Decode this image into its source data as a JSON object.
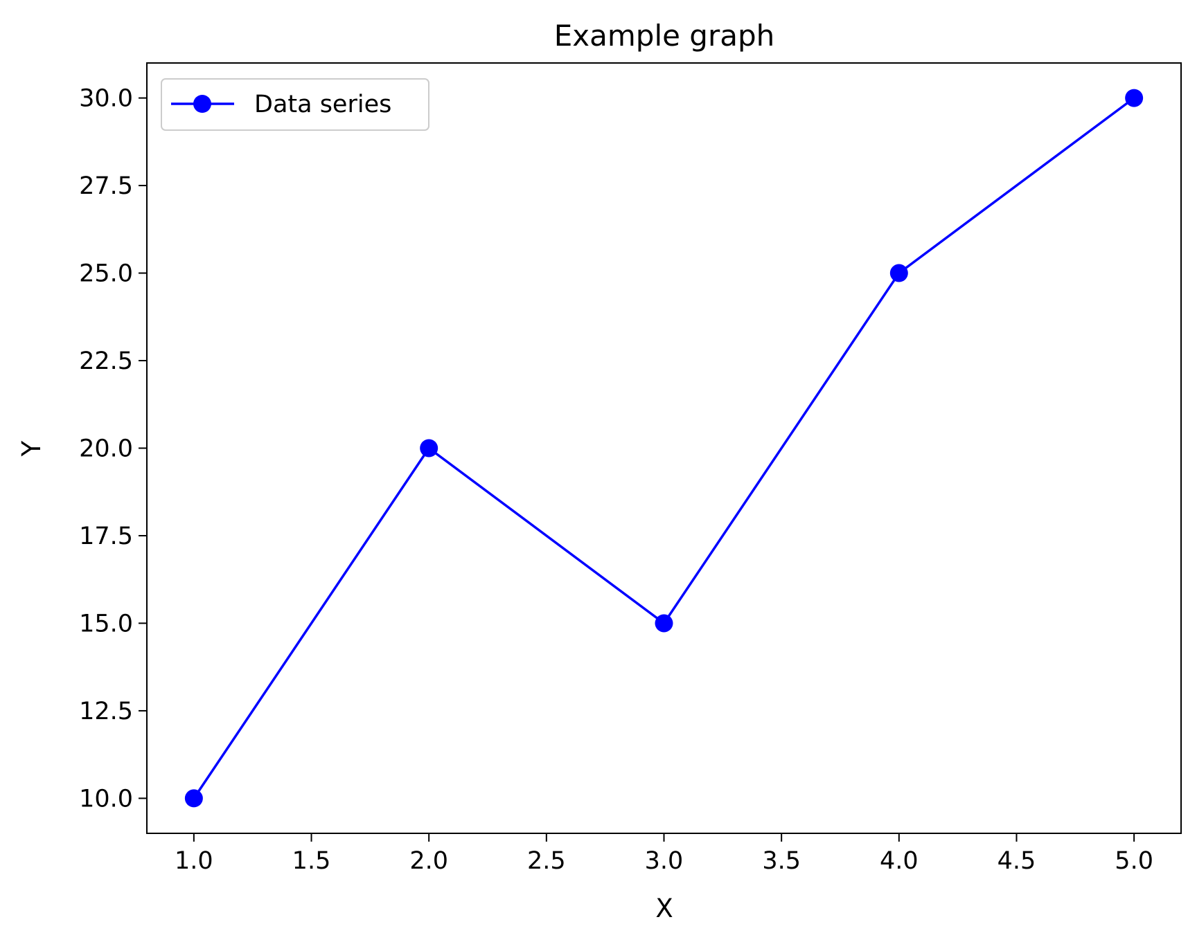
{
  "chart_data": {
    "type": "line",
    "title": "Example graph",
    "xlabel": "X",
    "ylabel": "Y",
    "xlim": [
      0.8,
      5.2
    ],
    "ylim": [
      9.0,
      31.0
    ],
    "xticks": [
      1.0,
      1.5,
      2.0,
      2.5,
      3.0,
      3.5,
      4.0,
      4.5,
      5.0
    ],
    "yticks": [
      10.0,
      12.5,
      15.0,
      17.5,
      20.0,
      22.5,
      25.0,
      27.5,
      30.0
    ],
    "xtick_labels": [
      "1.0",
      "1.5",
      "2.0",
      "2.5",
      "3.0",
      "3.5",
      "4.0",
      "4.5",
      "5.0"
    ],
    "ytick_labels": [
      "10.0",
      "12.5",
      "15.0",
      "17.5",
      "20.0",
      "22.5",
      "25.0",
      "27.5",
      "30.0"
    ],
    "grid": false,
    "legend_position": "top-left",
    "series": [
      {
        "name": "Data series",
        "color": "#0000ff",
        "marker": "circle",
        "x": [
          1,
          2,
          3,
          4,
          5
        ],
        "y": [
          10,
          20,
          15,
          25,
          30
        ]
      }
    ]
  }
}
